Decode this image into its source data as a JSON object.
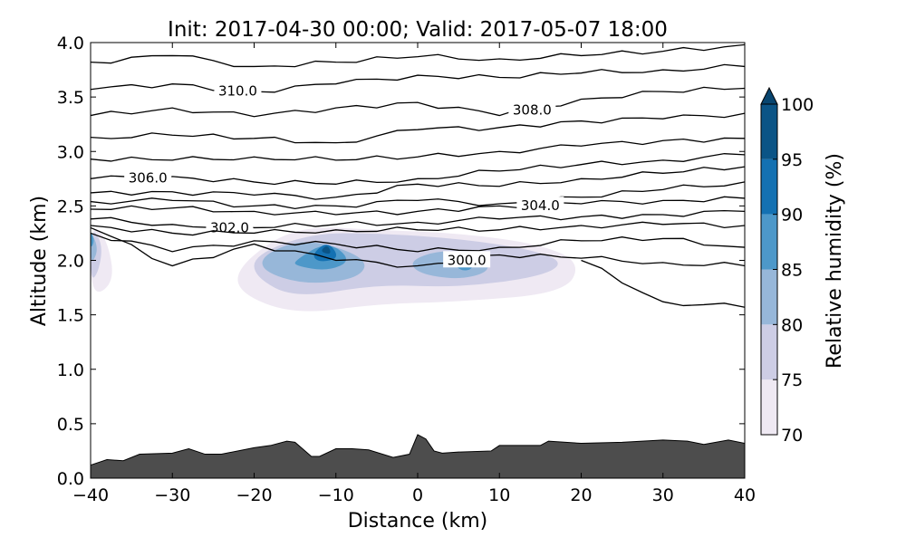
{
  "chart_data": {
    "type": "contour",
    "title": "Init: 2017-04-30 00:00; Valid: 2017-05-07 18:00",
    "xlabel": "Distance (km)",
    "ylabel": "Altitude (km)",
    "xlim": [
      -40,
      40
    ],
    "ylim": [
      0,
      4
    ],
    "xticks": [
      "−40",
      "−30",
      "−20",
      "−10",
      "0",
      "10",
      "20",
      "30",
      "40"
    ],
    "xtick_values": [
      -40,
      -30,
      -20,
      -10,
      0,
      10,
      20,
      30,
      40
    ],
    "yticks": [
      "0.0",
      "0.5",
      "1.0",
      "1.5",
      "2.0",
      "2.5",
      "3.0",
      "3.5",
      "4.0"
    ],
    "ytick_values": [
      0,
      0.5,
      1,
      1.5,
      2,
      2.5,
      3,
      3.5,
      4
    ],
    "colorbar": {
      "label": "Relative humidity (%)",
      "ticks": [
        "70",
        "75",
        "80",
        "85",
        "90",
        "95",
        "100"
      ],
      "levels": [
        70,
        75,
        80,
        85,
        90,
        95,
        100
      ],
      "colors": [
        "#efe9f3",
        "#cdcde5",
        "#97b7d9",
        "#4d98c9",
        "#1471b2",
        "#0b5486"
      ],
      "extend_color": "#08456f"
    },
    "terrain": {
      "color": "#4d4d4d",
      "x": [
        -40,
        -38,
        -36,
        -34,
        -30,
        -28,
        -26,
        -24,
        -20,
        -18,
        -16,
        -15,
        -13,
        -12,
        -10,
        -8,
        -6,
        -3,
        -1,
        0,
        1,
        2,
        3,
        5,
        9,
        10,
        13,
        15,
        16,
        20,
        25,
        30,
        33,
        35,
        38,
        40
      ],
      "y": [
        0.12,
        0.17,
        0.16,
        0.22,
        0.23,
        0.27,
        0.22,
        0.22,
        0.28,
        0.3,
        0.34,
        0.33,
        0.2,
        0.2,
        0.27,
        0.27,
        0.26,
        0.19,
        0.22,
        0.4,
        0.36,
        0.25,
        0.23,
        0.24,
        0.25,
        0.3,
        0.3,
        0.3,
        0.34,
        0.32,
        0.33,
        0.35,
        0.34,
        0.31,
        0.35,
        0.32
      ]
    },
    "humidity_regions": [
      {
        "level": 70,
        "x": [
          -40,
          -38,
          -37,
          -40
        ],
        "y": [
          2.35,
          2.2,
          1.8,
          1.65
        ]
      },
      {
        "level": 70,
        "x": [
          -22,
          -15,
          -5,
          5,
          15,
          20,
          18,
          5,
          -5,
          -15,
          -22
        ],
        "y": [
          1.95,
          2.32,
          2.28,
          2.25,
          2.15,
          1.98,
          1.7,
          1.62,
          1.6,
          1.5,
          1.7
        ]
      },
      {
        "level": 75,
        "x": [
          -40,
          -38.5,
          -39,
          -40
        ],
        "y": [
          2.32,
          2.15,
          1.9,
          1.8
        ]
      },
      {
        "level": 75,
        "x": [
          -20,
          -13,
          -5,
          5,
          14,
          18,
          15,
          5,
          -5,
          -15,
          -20
        ],
        "y": [
          2.05,
          2.25,
          2.25,
          2.2,
          2.1,
          1.98,
          1.85,
          1.75,
          1.78,
          1.65,
          1.85
        ]
      },
      {
        "level": 80,
        "x": [
          -19,
          -14,
          -8,
          -6,
          -8,
          -14,
          -19
        ],
        "y": [
          2.05,
          2.2,
          2.08,
          1.95,
          1.82,
          1.78,
          1.9
        ]
      },
      {
        "level": 80,
        "x": [
          -1,
          3,
          8,
          9,
          5,
          0
        ],
        "y": [
          2.0,
          2.1,
          2.05,
          1.9,
          1.82,
          1.88
        ]
      },
      {
        "level": 80,
        "x": [
          -40,
          -39,
          -40
        ],
        "y": [
          2.28,
          2.1,
          1.95
        ]
      },
      {
        "level": 85,
        "x": [
          -15,
          -11,
          -8,
          -11,
          -15
        ],
        "y": [
          2.0,
          2.18,
          2.0,
          1.9,
          1.95
        ]
      },
      {
        "level": 85,
        "x": [
          -40,
          -39.5,
          -40
        ],
        "y": [
          2.28,
          2.18,
          2.1
        ]
      },
      {
        "level": 85,
        "x": [
          4,
          6,
          7,
          5
        ],
        "y": [
          2.05,
          2.08,
          1.92,
          1.9
        ]
      },
      {
        "level": 90,
        "x": [
          -13,
          -11,
          -9.5,
          -12
        ],
        "y": [
          2.05,
          2.18,
          2.02,
          1.98
        ]
      },
      {
        "level": 95,
        "x": [
          -12,
          -11,
          -10.5
        ],
        "y": [
          2.08,
          2.15,
          2.05
        ]
      }
    ],
    "isentropes": {
      "x": [
        -40,
        -30,
        -20,
        -10,
        0,
        10,
        20,
        30,
        40
      ],
      "lines": [
        {
          "y": [
            3.82,
            3.88,
            3.78,
            3.82,
            3.87,
            3.85,
            3.88,
            3.92,
            3.98
          ],
          "label": ""
        },
        {
          "y": [
            3.57,
            3.62,
            3.55,
            3.62,
            3.7,
            3.68,
            3.72,
            3.75,
            3.78
          ],
          "label": "310.0",
          "label_x": -22
        },
        {
          "y": [
            3.33,
            3.4,
            3.32,
            3.4,
            3.45,
            3.33,
            3.48,
            3.55,
            3.58
          ],
          "label": "308.0",
          "label_x": 14
        },
        {
          "y": [
            3.13,
            3.15,
            3.12,
            3.08,
            3.2,
            3.22,
            3.28,
            3.3,
            3.35
          ],
          "label": ""
        },
        {
          "y": [
            2.93,
            2.92,
            2.95,
            2.92,
            2.95,
            3.0,
            3.05,
            3.1,
            3.12
          ],
          "label": ""
        },
        {
          "y": [
            2.75,
            2.77,
            2.72,
            2.7,
            2.75,
            2.82,
            2.88,
            2.92,
            2.97
          ],
          "label": "306.0",
          "label_x": -33
        },
        {
          "y": [
            2.62,
            2.63,
            2.6,
            2.58,
            2.7,
            2.68,
            2.75,
            2.8,
            2.86
          ],
          "label": ""
        },
        {
          "y": [
            2.54,
            2.55,
            2.5,
            2.5,
            2.55,
            2.52,
            2.58,
            2.65,
            2.72
          ],
          "label": ""
        },
        {
          "y": [
            2.47,
            2.48,
            2.45,
            2.42,
            2.45,
            2.5,
            2.52,
            2.55,
            2.57
          ],
          "label": "304.0",
          "label_x": 15
        },
        {
          "y": [
            2.38,
            2.33,
            2.3,
            2.33,
            2.35,
            2.38,
            2.4,
            2.42,
            2.45
          ],
          "label": "302.0",
          "label_x": -23
        },
        {
          "y": [
            2.32,
            2.25,
            2.25,
            2.28,
            2.28,
            2.28,
            2.32,
            2.33,
            2.32
          ],
          "label": ""
        },
        {
          "y": [
            2.25,
            2.08,
            2.18,
            2.15,
            2.08,
            2.12,
            2.18,
            2.2,
            2.12
          ],
          "label": ""
        },
        {
          "y": [
            2.3,
            1.95,
            2.15,
            2.0,
            1.95,
            2.05,
            2.02,
            1.98,
            1.95
          ],
          "label": "300.0",
          "label_x": 6
        },
        {
          "y": [
            null,
            null,
            null,
            null,
            null,
            null,
            2.0,
            1.62,
            1.57
          ],
          "label": ""
        }
      ]
    }
  }
}
